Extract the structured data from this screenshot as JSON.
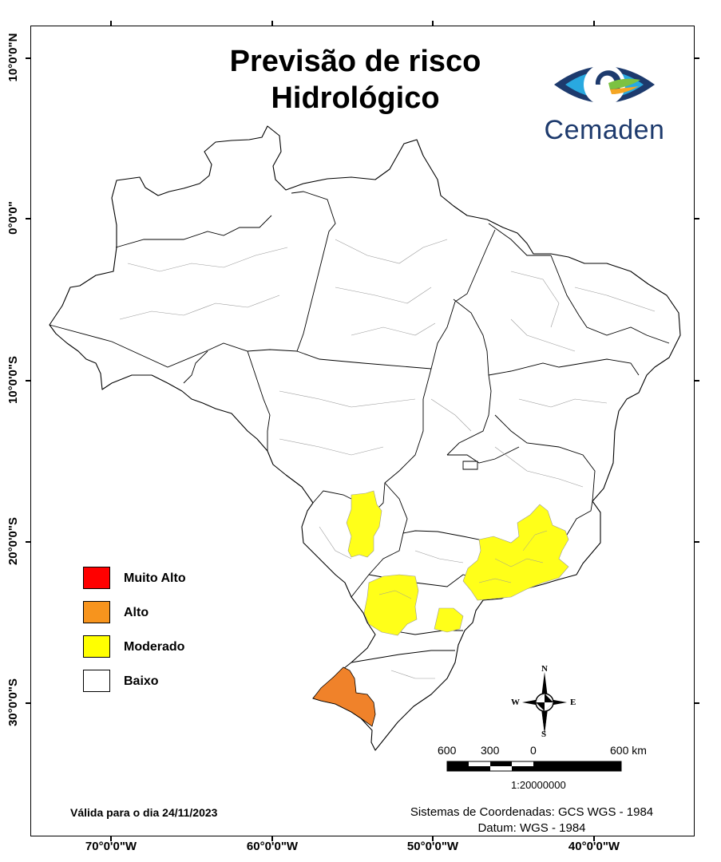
{
  "map": {
    "title_line1": "Previsão de risco",
    "title_line2": "Hidrológico",
    "logo_text": "Cemaden",
    "valid_date": "Válida para o dia 24/11/2023",
    "coord_system": "Sistemas de Coordenadas: GCS WGS - 1984",
    "datum": "Datum: WGS - 1984",
    "scale": {
      "labels": [
        "600",
        "300",
        "0",
        "600 km"
      ],
      "ratio": "1:20000000"
    },
    "compass": {
      "n": "N",
      "s": "S",
      "e": "E",
      "w": "W"
    },
    "lat_labels": [
      "10°0'0\"N",
      "0°0'0\"",
      "10°0'0\"S",
      "20°0'0\"S",
      "30°0'0\"S"
    ],
    "lon_labels": [
      "70°0'0\"W",
      "60°0'0\"W",
      "50°0'0\"W",
      "40°0'0\"W"
    ],
    "legend": [
      {
        "label": "Muito Alto",
        "color": "#ff0000"
      },
      {
        "label": "Alto",
        "color": "#f7941d"
      },
      {
        "label": "Moderado",
        "color": "#ffff00"
      },
      {
        "label": "Baixo",
        "color": "#ffffff"
      }
    ],
    "colors": {
      "alto_region": "#f0822a",
      "moderado_region": "#ffff19",
      "logo_blue": "#1d3a6d",
      "logo_light_blue": "#29a9e0",
      "logo_green": "#7cc242",
      "logo_orange": "#f5a623"
    }
  }
}
